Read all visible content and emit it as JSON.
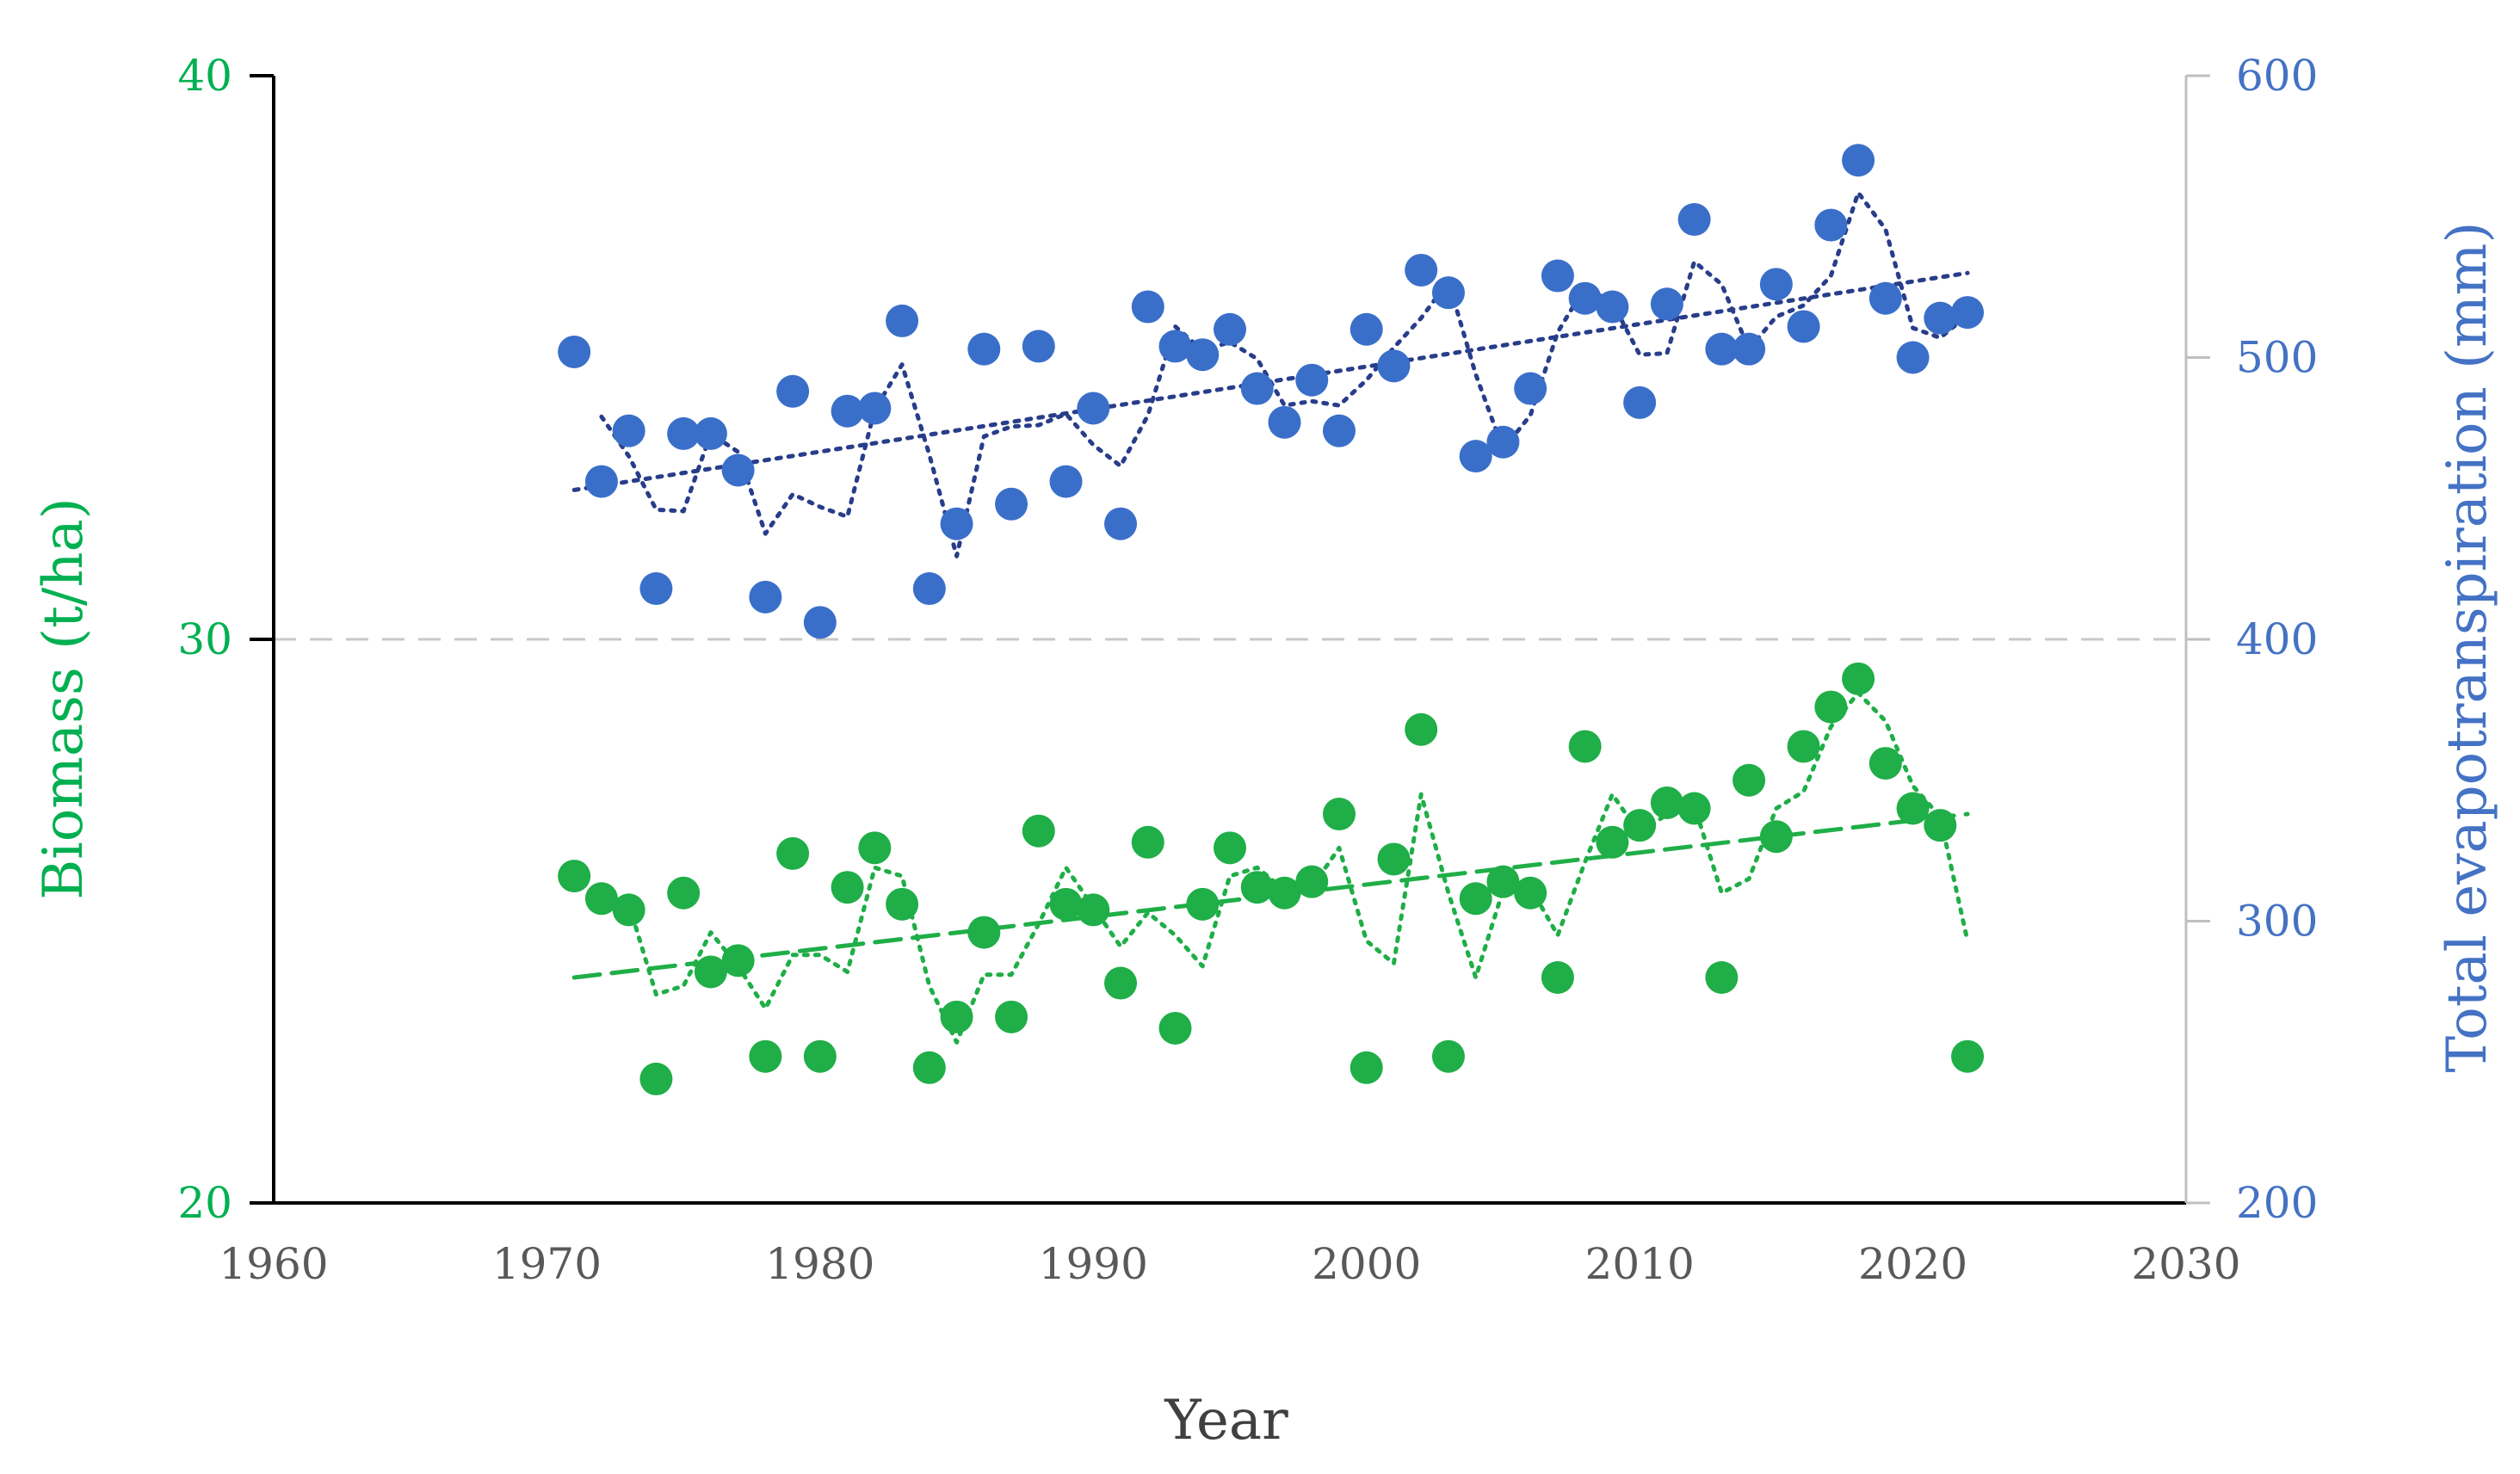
{
  "chart_data": {
    "type": "scatter",
    "xlabel": "Year",
    "ylabel_left": "Biomass (t/ha)",
    "ylabel_right": "Total evapotranspiration (mm)",
    "xlim": [
      1960,
      2030
    ],
    "ylim_left": [
      20,
      40
    ],
    "ylim_right": [
      200,
      600
    ],
    "x_ticks": [
      "1960",
      "1970",
      "1980",
      "1990",
      "2000",
      "2010",
      "2020",
      "2030"
    ],
    "y_left_ticks": [
      "20",
      "30",
      "40"
    ],
    "y_right_ticks": [
      "200",
      "300",
      "400",
      "500",
      "600"
    ],
    "grid": "dashed line at midpoint only",
    "colors": {
      "biomass": "#1fae47",
      "evapotranspiration": "#3a6fc9",
      "left_axis_text": "#00b050",
      "right_axis_text": "#4472c4",
      "trend_biomass": "#1fae47",
      "trend_et": "#283d8a",
      "gridline": "#c8c8c8",
      "axis": "#000000"
    },
    "series": [
      {
        "name": "Total evapotranspiration",
        "axis": "right",
        "marker": "circle",
        "x": [
          1971,
          1972,
          1973,
          1974,
          1975,
          1976,
          1977,
          1978,
          1979,
          1980,
          1981,
          1982,
          1983,
          1984,
          1985,
          1986,
          1987,
          1988,
          1989,
          1990,
          1991,
          1992,
          1993,
          1994,
          1995,
          1996,
          1997,
          1998,
          1999,
          2000,
          2001,
          2002,
          2003,
          2004,
          2005,
          2006,
          2007,
          2008,
          2009,
          2010,
          2011,
          2012,
          2013,
          2014,
          2015,
          2016,
          2017,
          2018,
          2019,
          2020,
          2021,
          2022
        ],
        "y": [
          502,
          456,
          474,
          418,
          473,
          473,
          460,
          415,
          488,
          406,
          481,
          482,
          513,
          418,
          441,
          503,
          448,
          504,
          456,
          482,
          441,
          518,
          504,
          501,
          510,
          489,
          477,
          492,
          474,
          510,
          497,
          531,
          523,
          465,
          470,
          489,
          529,
          521,
          518,
          484,
          519,
          549,
          503,
          503,
          526,
          511,
          547,
          570,
          521,
          500,
          514,
          516
        ]
      },
      {
        "name": "Biomass",
        "axis": "left",
        "marker": "circle",
        "x": [
          1971,
          1972,
          1973,
          1974,
          1975,
          1976,
          1977,
          1978,
          1979,
          1980,
          1981,
          1982,
          1983,
          1984,
          1985,
          1986,
          1987,
          1988,
          1989,
          1990,
          1991,
          1992,
          1993,
          1994,
          1995,
          1996,
          1997,
          1998,
          1999,
          2000,
          2001,
          2002,
          2003,
          2004,
          2005,
          2006,
          2007,
          2008,
          2009,
          2010,
          2011,
          2012,
          2013,
          2014,
          2015,
          2016,
          2017,
          2018,
          2019,
          2020,
          2021,
          2022
        ],
        "y": [
          25.8,
          25.4,
          25.2,
          22.2,
          25.5,
          24.1,
          24.3,
          22.6,
          26.2,
          22.6,
          25.6,
          26.3,
          25.3,
          22.4,
          23.3,
          24.8,
          23.3,
          26.6,
          25.3,
          25.2,
          23.9,
          26.4,
          23.1,
          25.3,
          26.3,
          25.6,
          25.5,
          25.7,
          26.9,
          22.4,
          26.1,
          28.4,
          22.6,
          25.4,
          25.7,
          25.5,
          24.0,
          28.1,
          26.4,
          26.7,
          27.1,
          27.0,
          24.0,
          27.5,
          26.5,
          28.1,
          28.8,
          29.3,
          27.8,
          27.0,
          26.7,
          22.6
        ]
      }
    ],
    "trendlines": [
      {
        "series": "Total evapotranspiration",
        "kind": "linear",
        "style": "dotted",
        "x": [
          1971,
          2022
        ],
        "y": [
          453,
          530
        ]
      },
      {
        "series": "Total evapotranspiration",
        "kind": "moving-average",
        "style": "dotted",
        "period": 2
      },
      {
        "series": "Biomass",
        "kind": "linear",
        "style": "dashed",
        "x": [
          1971,
          2022
        ],
        "y": [
          24.0,
          26.9
        ]
      },
      {
        "series": "Biomass",
        "kind": "moving-average",
        "style": "dotted",
        "period": 2
      }
    ]
  }
}
